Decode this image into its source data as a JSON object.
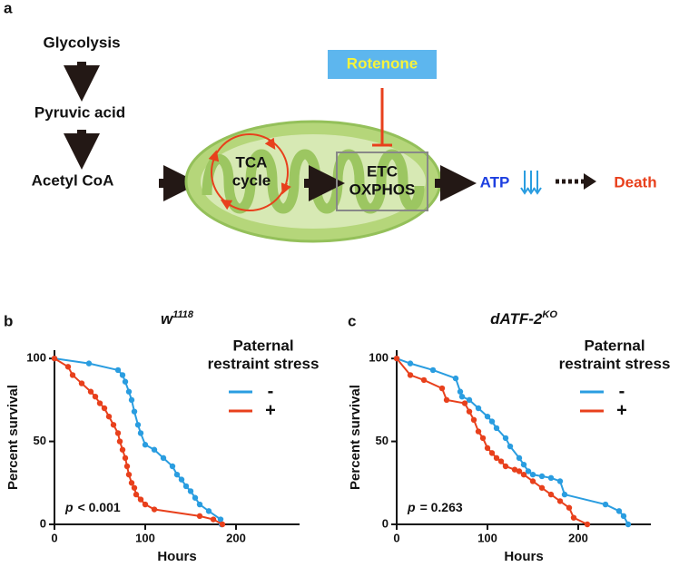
{
  "panel_labels": [
    "a",
    "b",
    "c"
  ],
  "diagram": {
    "nodes": [
      "Glycolysis",
      "Pyruvic acid",
      "Acetyl CoA"
    ],
    "tca": [
      "TCA",
      "cycle"
    ],
    "etc": [
      "ETC",
      "OXPHOS"
    ],
    "inhibitor": "Rotenone",
    "atp": "ATP",
    "outcome": "Death"
  },
  "chart_data": [
    {
      "type": "line",
      "title": {
        "base": "w",
        "sup": "1118"
      },
      "x_label": "Hours",
      "y_label": "Percent survival",
      "legend_title": [
        "Paternal",
        "restraint stress"
      ],
      "legend": "upper right",
      "annotation": {
        "symbol": "p",
        "text": "< 0.001"
      },
      "xlim": [
        0,
        270
      ],
      "ylim": [
        0,
        105
      ],
      "xticks": [
        0,
        100,
        200
      ],
      "yticks": [
        0,
        50,
        100
      ],
      "series": [
        {
          "name": "-",
          "color": "#2a9de0",
          "x": [
            0,
            38,
            70,
            75,
            78,
            82,
            85,
            88,
            92,
            95,
            100,
            110,
            120,
            130,
            135,
            140,
            145,
            150,
            155,
            160,
            170,
            183,
            184
          ],
          "values": [
            100,
            97,
            93,
            90,
            86,
            80,
            75,
            68,
            60,
            55,
            48,
            45,
            40,
            35,
            30,
            27,
            23,
            20,
            16,
            12,
            8,
            3,
            0
          ]
        },
        {
          "name": "+",
          "color": "#e8401c",
          "x": [
            0,
            15,
            20,
            30,
            40,
            45,
            50,
            55,
            60,
            65,
            70,
            72,
            75,
            78,
            80,
            82,
            85,
            88,
            90,
            95,
            100,
            110,
            160,
            175,
            185
          ],
          "values": [
            100,
            95,
            90,
            85,
            80,
            77,
            73,
            70,
            65,
            60,
            55,
            50,
            45,
            40,
            35,
            30,
            25,
            22,
            18,
            15,
            12,
            9,
            5,
            3,
            0
          ]
        }
      ]
    },
    {
      "type": "line",
      "title": {
        "base": "dATF-2",
        "sup": "KO"
      },
      "x_label": "Hours",
      "y_label": "Percent survival",
      "legend_title": [
        "Paternal",
        "restraint stress"
      ],
      "legend": "upper right",
      "annotation": {
        "symbol": "p",
        "text": "= 0.263"
      },
      "xlim": [
        0,
        280
      ],
      "ylim": [
        0,
        105
      ],
      "xticks": [
        0,
        100,
        200
      ],
      "yticks": [
        0,
        50,
        100
      ],
      "series": [
        {
          "name": "-",
          "color": "#2a9de0",
          "x": [
            0,
            15,
            40,
            65,
            70,
            72,
            80,
            90,
            100,
            105,
            110,
            120,
            125,
            135,
            140,
            145,
            150,
            160,
            170,
            180,
            185,
            230,
            245,
            250,
            255
          ],
          "values": [
            100,
            97,
            93,
            88,
            80,
            77,
            75,
            70,
            65,
            62,
            58,
            52,
            47,
            40,
            36,
            32,
            30,
            29,
            28,
            26,
            18,
            12,
            8,
            5,
            0
          ]
        },
        {
          "name": "+",
          "color": "#e8401c",
          "x": [
            0,
            15,
            30,
            50,
            55,
            75,
            80,
            85,
            90,
            95,
            100,
            105,
            110,
            115,
            120,
            130,
            135,
            140,
            150,
            160,
            170,
            180,
            190,
            195,
            210
          ],
          "values": [
            100,
            90,
            87,
            82,
            75,
            73,
            68,
            63,
            56,
            52,
            46,
            43,
            40,
            38,
            35,
            33,
            32,
            30,
            26,
            22,
            18,
            14,
            10,
            4,
            0
          ]
        }
      ]
    }
  ]
}
